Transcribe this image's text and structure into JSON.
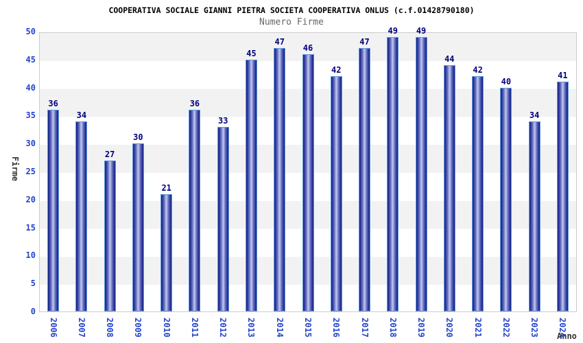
{
  "chart_data": {
    "type": "bar",
    "title": "COOPERATIVA SOCIALE GIANNI PIETRA SOCIETA COOPERATIVA ONLUS (c.f.01428790180)",
    "subtitle": "Numero Firme",
    "xlabel": "Anno",
    "ylabel": "Firme",
    "categories": [
      "2006",
      "2007",
      "2008",
      "2009",
      "2010",
      "2011",
      "2012",
      "2013",
      "2014",
      "2015",
      "2016",
      "2017",
      "2018",
      "2019",
      "2020",
      "2021",
      "2022",
      "2023",
      "2024"
    ],
    "values": [
      36,
      34,
      27,
      30,
      21,
      36,
      33,
      45,
      47,
      46,
      42,
      47,
      49,
      49,
      44,
      42,
      40,
      34,
      41
    ],
    "ylim": [
      0,
      50
    ],
    "yticks": [
      0,
      5,
      10,
      15,
      20,
      25,
      30,
      35,
      40,
      45,
      50
    ],
    "grid": "alternating-horizontal-bands-every-5",
    "legend": "none",
    "bar_value_labels": true,
    "x_tick_rotation_deg": 90,
    "colors": {
      "background": "#ffffff",
      "band_gray": "#f2f2f2",
      "band_white": "#ffffff",
      "plot_border": "#cccccc",
      "bar_dark": "#18217f",
      "bar_light": "#bac2ee",
      "bar_border": "#5f9ddd",
      "value_label": "#00007e",
      "tick_label": "#2244cc",
      "title": "#000000",
      "subtitle": "#666666",
      "axis_label": "#333333"
    }
  }
}
